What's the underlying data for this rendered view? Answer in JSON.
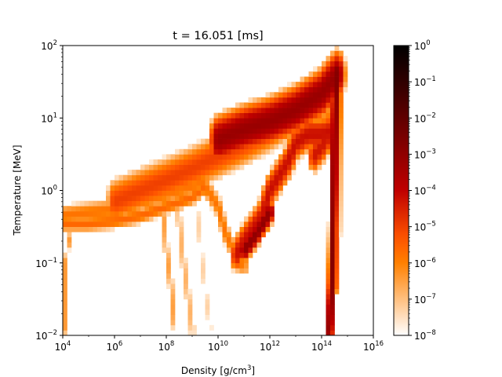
{
  "chart_data": {
    "type": "heatmap",
    "title": "t = 16.051 [ms]",
    "xlabel": "Density [g/cm",
    "xlabel_sup": "3",
    "xlabel_end": "]",
    "ylabel": "Temperature [MeV]",
    "x_scale": "log",
    "y_scale": "log",
    "xlim": [
      10000,
      1e+16
    ],
    "ylim": [
      0.01,
      100
    ],
    "x_ticks": [
      {
        "base": "10",
        "exp": "4",
        "value": 10000.0
      },
      {
        "base": "10",
        "exp": "6",
        "value": 1000000.0
      },
      {
        "base": "10",
        "exp": "8",
        "value": 100000000.0
      },
      {
        "base": "10",
        "exp": "10",
        "value": 10000000000.0
      },
      {
        "base": "10",
        "exp": "12",
        "value": 1000000000000.0
      },
      {
        "base": "10",
        "exp": "14",
        "value": 100000000000000.0
      },
      {
        "base": "10",
        "exp": "16",
        "value": 1e+16
      }
    ],
    "y_ticks": [
      {
        "base": "10",
        "exp": "−2",
        "value": 0.01
      },
      {
        "base": "10",
        "exp": "−1",
        "value": 0.1
      },
      {
        "base": "10",
        "exp": "0",
        "value": 1
      },
      {
        "base": "10",
        "exp": "1",
        "value": 10
      },
      {
        "base": "10",
        "exp": "2",
        "value": 100
      }
    ],
    "colorbar": {
      "scale": "log",
      "range": [
        1e-08,
        1
      ],
      "colormap": "gist_heat_r",
      "ticks": [
        {
          "base": "10",
          "exp": "−8",
          "value": 1e-08
        },
        {
          "base": "10",
          "exp": "−7",
          "value": 1e-07
        },
        {
          "base": "10",
          "exp": "−6",
          "value": 1e-06
        },
        {
          "base": "10",
          "exp": "−5",
          "value": 1e-05
        },
        {
          "base": "10",
          "exp": "−4",
          "value": 0.0001
        },
        {
          "base": "10",
          "exp": "−3",
          "value": 0.001
        },
        {
          "base": "10",
          "exp": "−2",
          "value": 0.01
        },
        {
          "base": "10",
          "exp": "−1",
          "value": 0.1
        },
        {
          "base": "10",
          "exp": "0",
          "value": 1
        }
      ]
    },
    "grid": false,
    "components": [
      {
        "shape": "band",
        "path": [
          [
            10000.0,
            0.45
          ],
          [
            100000.0,
            0.5
          ],
          [
            1000000.0,
            0.55
          ],
          [
            10000000.0,
            0.7
          ],
          [
            100000000.0,
            0.9
          ],
          [
            1000000000.0,
            1.15
          ],
          [
            3000000000.0,
            1.3
          ]
        ],
        "width_dex": 0.12,
        "weight": -5.8
      },
      {
        "shape": "band",
        "path": [
          [
            10000.0,
            0.35
          ],
          [
            100000.0,
            0.35
          ],
          [
            1000000.0,
            0.38
          ],
          [
            10000000.0,
            0.45
          ],
          [
            100000000.0,
            0.6
          ],
          [
            1000000000.0,
            0.8
          ],
          [
            3000000000.0,
            1.1
          ]
        ],
        "width_dex": 0.09,
        "weight": -5.6
      },
      {
        "shape": "band",
        "path": [
          [
            1000000.0,
            0.7
          ],
          [
            10000000.0,
            1.0
          ],
          [
            100000000.0,
            1.4
          ],
          [
            1000000000.0,
            2.0
          ],
          [
            10000000000.0,
            3.0
          ],
          [
            100000000000.0,
            4.5
          ],
          [
            1000000000000.0,
            7
          ],
          [
            10000000000000.0,
            12
          ],
          [
            100000000000000.0,
            22
          ],
          [
            400000000000000.0,
            45
          ]
        ],
        "width_dex": 0.22,
        "weight": -5.0
      },
      {
        "shape": "band",
        "path": [
          [
            10000000000.0,
            5
          ],
          [
            100000000000.0,
            7
          ],
          [
            1000000000000.0,
            9
          ],
          [
            10000000000000.0,
            13
          ],
          [
            100000000000000.0,
            22
          ],
          [
            400000000000000.0,
            40
          ]
        ],
        "width_dex": 0.2,
        "weight": -3.2
      },
      {
        "shape": "band",
        "path": [
          [
            3000000000.0,
            1.2
          ],
          [
            10000000000.0,
            0.6
          ],
          [
            20000000000.0,
            0.25
          ],
          [
            50000000000.0,
            0.13
          ],
          [
            100000000000.0,
            0.09
          ]
        ],
        "width_dex": 0.12,
        "weight": -5.8
      },
      {
        "shape": "band",
        "path": [
          [
            50000000000.0,
            0.13
          ],
          [
            100000000000.0,
            0.2
          ],
          [
            500000000000.0,
            0.45
          ],
          [
            1000000000000.0,
            1.0
          ],
          [
            5000000000000.0,
            2.5
          ],
          [
            10000000000000.0,
            4.5
          ],
          [
            30000000000000.0,
            6
          ],
          [
            100000000000000.0,
            6
          ],
          [
            200000000000000.0,
            6.5
          ]
        ],
        "width_dex": 0.15,
        "weight": -4.2
      },
      {
        "shape": "band",
        "path": [
          [
            100000000000.0,
            0.15
          ],
          [
            300000000000.0,
            0.25
          ],
          [
            1000000000000.0,
            0.5
          ]
        ],
        "width_dex": 0.1,
        "weight": -3.0
      },
      {
        "shape": "band",
        "path": [
          [
            200000000000000.0,
            0.012
          ],
          [
            250000000000000.0,
            0.05
          ],
          [
            280000000000000.0,
            0.3
          ],
          [
            300000000000000.0,
            1.2
          ],
          [
            320000000000000.0,
            5
          ],
          [
            350000000000000.0,
            20
          ],
          [
            400000000000000.0,
            45
          ]
        ],
        "width_dex": 0.1,
        "weight": -2.8
      },
      {
        "shape": "band",
        "path": [
          [
            320000000000000.0,
            0.05
          ],
          [
            380000000000000.0,
            0.3
          ],
          [
            400000000000000.0,
            2
          ],
          [
            450000000000000.0,
            20
          ]
        ],
        "width_dex": 0.12,
        "weight": -5.0
      },
      {
        "shape": "band",
        "path": [
          [
            200000000.0,
            0.015
          ],
          [
            150000000.0,
            0.05
          ],
          [
            100000000.0,
            0.15
          ],
          [
            80000000.0,
            0.4
          ]
        ],
        "width_dex": 0.1,
        "weight": -6.5
      },
      {
        "shape": "band",
        "path": [
          [
            1000000000.0,
            0.012
          ],
          [
            600000000.0,
            0.05
          ],
          [
            400000000.0,
            0.15
          ],
          [
            300000000.0,
            0.45
          ]
        ],
        "width_dex": 0.12,
        "weight": -6.8
      },
      {
        "shape": "band",
        "path": [
          [
            5000000000.0,
            0.012
          ],
          [
            3000000000.0,
            0.05
          ],
          [
            2000000000.0,
            0.2
          ],
          [
            1500000000.0,
            0.6
          ]
        ],
        "width_dex": 0.1,
        "weight": -7.3
      },
      {
        "shape": "band",
        "path": [
          [
            12000.0,
            0.012
          ],
          [
            12000.0,
            0.1
          ],
          [
            20000.0,
            0.25
          ]
        ],
        "width_dex": 0.06,
        "weight": -6.4
      },
      {
        "shape": "band",
        "path": [
          [
            50000000000000.0,
            3
          ],
          [
            100000000000000.0,
            4
          ],
          [
            200000000000000.0,
            6
          ],
          [
            300000000000000.0,
            12
          ],
          [
            400000000000000.0,
            30
          ]
        ],
        "width_dex": 0.15,
        "weight": -4.3
      }
    ]
  }
}
